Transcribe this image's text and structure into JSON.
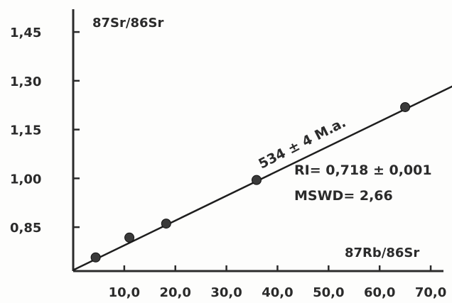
{
  "chart_data": {
    "type": "scatter",
    "ylabel": "87Sr/86Sr",
    "xlabel": "87Rb/86Sr",
    "xlim": [
      0,
      72.5
    ],
    "ylim": [
      0.715,
      1.52
    ],
    "xticks": [
      10,
      20,
      30,
      40,
      50,
      60,
      70
    ],
    "xtick_labels": [
      "10,0",
      "20,0",
      "30,0",
      "40,0",
      "50,0",
      "60,0",
      "70,0"
    ],
    "yticks": [
      0.85,
      1.0,
      1.15,
      1.3,
      1.45
    ],
    "ytick_labels": [
      "0,85",
      "1,00",
      "1,15",
      "1,30",
      "1,45"
    ],
    "series": [
      {
        "x": [
          4.4,
          11.0,
          18.2,
          35.9,
          65.0
        ],
        "y": [
          0.757,
          0.818,
          0.861,
          0.995,
          1.219
        ]
      }
    ],
    "isochron": {
      "x": [
        0,
        74.5
      ],
      "y": [
        0.718,
        1.285
      ],
      "label": "534 ± 4 M.a."
    },
    "annotations": [
      "RI= 0,718 ± 0,001",
      "MSWD= 2,66"
    ],
    "grid": false,
    "legend": "none"
  },
  "colors": {
    "ink": "#2b2b2b",
    "point": "#3a3a3a"
  }
}
